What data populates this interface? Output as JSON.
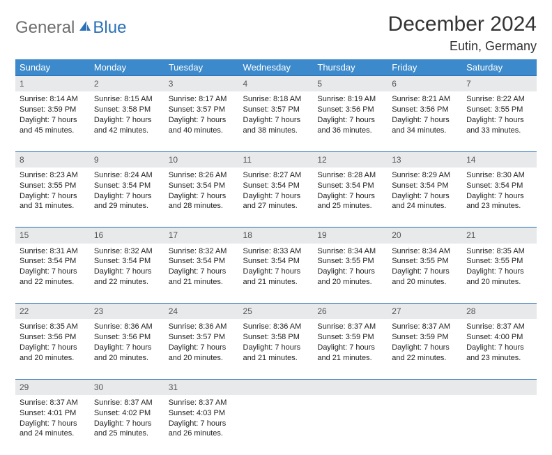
{
  "brand": {
    "part1": "General",
    "part2": "Blue"
  },
  "title": "December 2024",
  "location": "Eutin, Germany",
  "colors": {
    "header_bg": "#3c8acb",
    "header_text": "#ffffff",
    "daynum_bg": "#e7e9eb",
    "daynum_border": "#2a71b8",
    "logo_gray": "#6e6e6e",
    "logo_blue": "#2a71b8"
  },
  "weekdays": [
    "Sunday",
    "Monday",
    "Tuesday",
    "Wednesday",
    "Thursday",
    "Friday",
    "Saturday"
  ],
  "weeks": [
    [
      {
        "n": "1",
        "sr": "Sunrise: 8:14 AM",
        "ss": "Sunset: 3:59 PM",
        "d1": "Daylight: 7 hours",
        "d2": "and 45 minutes."
      },
      {
        "n": "2",
        "sr": "Sunrise: 8:15 AM",
        "ss": "Sunset: 3:58 PM",
        "d1": "Daylight: 7 hours",
        "d2": "and 42 minutes."
      },
      {
        "n": "3",
        "sr": "Sunrise: 8:17 AM",
        "ss": "Sunset: 3:57 PM",
        "d1": "Daylight: 7 hours",
        "d2": "and 40 minutes."
      },
      {
        "n": "4",
        "sr": "Sunrise: 8:18 AM",
        "ss": "Sunset: 3:57 PM",
        "d1": "Daylight: 7 hours",
        "d2": "and 38 minutes."
      },
      {
        "n": "5",
        "sr": "Sunrise: 8:19 AM",
        "ss": "Sunset: 3:56 PM",
        "d1": "Daylight: 7 hours",
        "d2": "and 36 minutes."
      },
      {
        "n": "6",
        "sr": "Sunrise: 8:21 AM",
        "ss": "Sunset: 3:56 PM",
        "d1": "Daylight: 7 hours",
        "d2": "and 34 minutes."
      },
      {
        "n": "7",
        "sr": "Sunrise: 8:22 AM",
        "ss": "Sunset: 3:55 PM",
        "d1": "Daylight: 7 hours",
        "d2": "and 33 minutes."
      }
    ],
    [
      {
        "n": "8",
        "sr": "Sunrise: 8:23 AM",
        "ss": "Sunset: 3:55 PM",
        "d1": "Daylight: 7 hours",
        "d2": "and 31 minutes."
      },
      {
        "n": "9",
        "sr": "Sunrise: 8:24 AM",
        "ss": "Sunset: 3:54 PM",
        "d1": "Daylight: 7 hours",
        "d2": "and 29 minutes."
      },
      {
        "n": "10",
        "sr": "Sunrise: 8:26 AM",
        "ss": "Sunset: 3:54 PM",
        "d1": "Daylight: 7 hours",
        "d2": "and 28 minutes."
      },
      {
        "n": "11",
        "sr": "Sunrise: 8:27 AM",
        "ss": "Sunset: 3:54 PM",
        "d1": "Daylight: 7 hours",
        "d2": "and 27 minutes."
      },
      {
        "n": "12",
        "sr": "Sunrise: 8:28 AM",
        "ss": "Sunset: 3:54 PM",
        "d1": "Daylight: 7 hours",
        "d2": "and 25 minutes."
      },
      {
        "n": "13",
        "sr": "Sunrise: 8:29 AM",
        "ss": "Sunset: 3:54 PM",
        "d1": "Daylight: 7 hours",
        "d2": "and 24 minutes."
      },
      {
        "n": "14",
        "sr": "Sunrise: 8:30 AM",
        "ss": "Sunset: 3:54 PM",
        "d1": "Daylight: 7 hours",
        "d2": "and 23 minutes."
      }
    ],
    [
      {
        "n": "15",
        "sr": "Sunrise: 8:31 AM",
        "ss": "Sunset: 3:54 PM",
        "d1": "Daylight: 7 hours",
        "d2": "and 22 minutes."
      },
      {
        "n": "16",
        "sr": "Sunrise: 8:32 AM",
        "ss": "Sunset: 3:54 PM",
        "d1": "Daylight: 7 hours",
        "d2": "and 22 minutes."
      },
      {
        "n": "17",
        "sr": "Sunrise: 8:32 AM",
        "ss": "Sunset: 3:54 PM",
        "d1": "Daylight: 7 hours",
        "d2": "and 21 minutes."
      },
      {
        "n": "18",
        "sr": "Sunrise: 8:33 AM",
        "ss": "Sunset: 3:54 PM",
        "d1": "Daylight: 7 hours",
        "d2": "and 21 minutes."
      },
      {
        "n": "19",
        "sr": "Sunrise: 8:34 AM",
        "ss": "Sunset: 3:55 PM",
        "d1": "Daylight: 7 hours",
        "d2": "and 20 minutes."
      },
      {
        "n": "20",
        "sr": "Sunrise: 8:34 AM",
        "ss": "Sunset: 3:55 PM",
        "d1": "Daylight: 7 hours",
        "d2": "and 20 minutes."
      },
      {
        "n": "21",
        "sr": "Sunrise: 8:35 AM",
        "ss": "Sunset: 3:55 PM",
        "d1": "Daylight: 7 hours",
        "d2": "and 20 minutes."
      }
    ],
    [
      {
        "n": "22",
        "sr": "Sunrise: 8:35 AM",
        "ss": "Sunset: 3:56 PM",
        "d1": "Daylight: 7 hours",
        "d2": "and 20 minutes."
      },
      {
        "n": "23",
        "sr": "Sunrise: 8:36 AM",
        "ss": "Sunset: 3:56 PM",
        "d1": "Daylight: 7 hours",
        "d2": "and 20 minutes."
      },
      {
        "n": "24",
        "sr": "Sunrise: 8:36 AM",
        "ss": "Sunset: 3:57 PM",
        "d1": "Daylight: 7 hours",
        "d2": "and 20 minutes."
      },
      {
        "n": "25",
        "sr": "Sunrise: 8:36 AM",
        "ss": "Sunset: 3:58 PM",
        "d1": "Daylight: 7 hours",
        "d2": "and 21 minutes."
      },
      {
        "n": "26",
        "sr": "Sunrise: 8:37 AM",
        "ss": "Sunset: 3:59 PM",
        "d1": "Daylight: 7 hours",
        "d2": "and 21 minutes."
      },
      {
        "n": "27",
        "sr": "Sunrise: 8:37 AM",
        "ss": "Sunset: 3:59 PM",
        "d1": "Daylight: 7 hours",
        "d2": "and 22 minutes."
      },
      {
        "n": "28",
        "sr": "Sunrise: 8:37 AM",
        "ss": "Sunset: 4:00 PM",
        "d1": "Daylight: 7 hours",
        "d2": "and 23 minutes."
      }
    ],
    [
      {
        "n": "29",
        "sr": "Sunrise: 8:37 AM",
        "ss": "Sunset: 4:01 PM",
        "d1": "Daylight: 7 hours",
        "d2": "and 24 minutes."
      },
      {
        "n": "30",
        "sr": "Sunrise: 8:37 AM",
        "ss": "Sunset: 4:02 PM",
        "d1": "Daylight: 7 hours",
        "d2": "and 25 minutes."
      },
      {
        "n": "31",
        "sr": "Sunrise: 8:37 AM",
        "ss": "Sunset: 4:03 PM",
        "d1": "Daylight: 7 hours",
        "d2": "and 26 minutes."
      },
      null,
      null,
      null,
      null
    ]
  ]
}
